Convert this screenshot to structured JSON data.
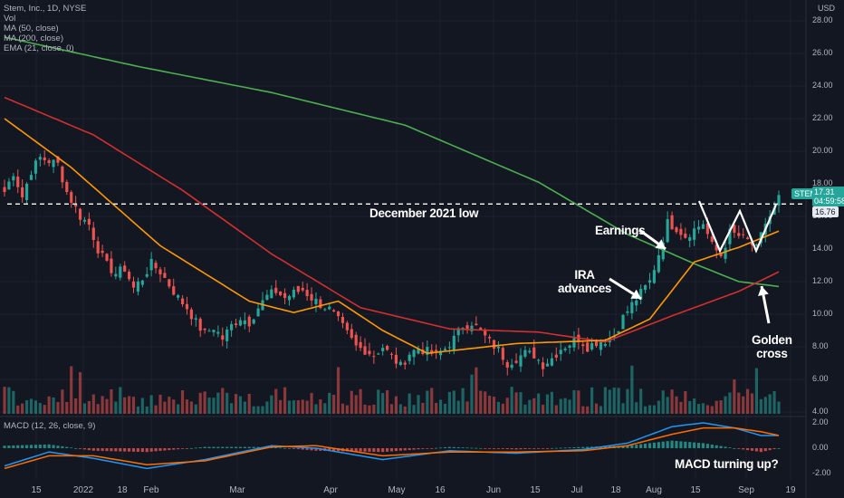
{
  "legend": {
    "symbol": "Stem, Inc., 1D, NYSE",
    "vol": "Vol",
    "ma50": "MA (50, close)",
    "ma200": "MA (200, close)",
    "ema": "EMA (21, close, 0)"
  },
  "macd_legend": "MACD (12, 26, close, 9)",
  "currency": "USD",
  "price_axis": [
    "28.00",
    "26.00",
    "24.00",
    "22.00",
    "20.00",
    "18.00",
    "16.00",
    "14.00",
    "12.00",
    "10.00",
    "8.00",
    "6.00",
    "4.00"
  ],
  "macd_axis": [
    "2.00",
    "0.00",
    "-2.00"
  ],
  "x_axis": [
    "15",
    "2022",
    "18",
    "Feb",
    "Mar",
    "Apr",
    "May",
    "16",
    "Jun",
    "15",
    "Jul",
    "18",
    "Aug",
    "15",
    "Sep",
    "19"
  ],
  "price_tags": {
    "symbol": "STEM",
    "last": "17.31",
    "countdown": "04:59:58",
    "ref": "16.76"
  },
  "annotations": {
    "december_low": "December 2021 low",
    "earnings": "Earnings",
    "ira": [
      "IRA",
      "advances"
    ],
    "golden": [
      "Golden",
      "cross"
    ],
    "macd": "MACD turning up?"
  },
  "colors": {
    "background": "#131722",
    "up": "#26a69a",
    "down": "#ef5350",
    "ma50": "#d32f2f",
    "ma200": "#4caf50",
    "ema": "#ff9800",
    "macd": "#2196f3",
    "signal": "#ff6d00",
    "grid": "#1e222d"
  },
  "chart_data": [
    {
      "type": "candlestick",
      "title": "Stem, Inc., 1D, NYSE",
      "ylabel": "USD",
      "ylim": [
        4,
        28
      ],
      "x": [
        "15",
        "2022",
        "18",
        "Feb",
        "Mar",
        "Apr",
        "May",
        "16",
        "Jun",
        "15",
        "Jul",
        "18",
        "Aug",
        "15",
        "Sep",
        "19"
      ],
      "series": [
        {
          "name": "Close (approx.)",
          "points": [
            [
              0,
              17.5
            ],
            [
              2,
              18.7
            ],
            [
              4,
              17.2
            ],
            [
              6,
              18.8
            ],
            [
              8,
              19.6
            ],
            [
              10,
              19.4
            ],
            [
              12,
              19.2
            ],
            [
              14,
              17.5
            ],
            [
              17,
              16.0
            ],
            [
              19,
              15.5
            ],
            [
              21,
              14.0
            ],
            [
              23,
              13.0
            ],
            [
              25,
              12.5
            ],
            [
              27,
              12.8
            ],
            [
              29,
              11.6
            ],
            [
              31,
              12.2
            ],
            [
              33,
              13.1
            ],
            [
              35,
              12.6
            ],
            [
              37,
              11.8
            ],
            [
              39,
              11.0
            ],
            [
              41,
              10.4
            ],
            [
              43,
              9.5
            ],
            [
              45,
              8.8
            ],
            [
              47,
              9.2
            ],
            [
              49,
              8.5
            ],
            [
              51,
              9.3
            ],
            [
              53,
              9.8
            ],
            [
              55,
              9.5
            ],
            [
              57,
              10.4
            ],
            [
              59,
              11.1
            ],
            [
              61,
              11.4
            ],
            [
              63,
              11.0
            ],
            [
              65,
              11.3
            ],
            [
              67,
              11.5
            ],
            [
              69,
              11.0
            ],
            [
              71,
              10.6
            ],
            [
              73,
              10.3
            ],
            [
              75,
              9.6
            ],
            [
              77,
              8.8
            ],
            [
              79,
              8.0
            ],
            [
              81,
              7.8
            ],
            [
              83,
              7.5
            ],
            [
              85,
              8.0
            ],
            [
              87,
              7.4
            ],
            [
              89,
              6.8
            ],
            [
              91,
              7.6
            ],
            [
              93,
              7.9
            ],
            [
              95,
              7.7
            ],
            [
              97,
              7.5
            ],
            [
              99,
              7.9
            ],
            [
              101,
              8.5
            ],
            [
              103,
              9.3
            ],
            [
              105,
              9.5
            ],
            [
              107,
              8.9
            ],
            [
              109,
              8.3
            ],
            [
              111,
              7.8
            ],
            [
              113,
              7.0
            ],
            [
              115,
              7.3
            ],
            [
              117,
              7.6
            ],
            [
              119,
              7.5
            ],
            [
              121,
              6.9
            ],
            [
              123,
              7.3
            ],
            [
              125,
              7.9
            ],
            [
              127,
              8.2
            ],
            [
              129,
              8.5
            ],
            [
              131,
              8.0
            ],
            [
              133,
              8.3
            ],
            [
              135,
              8.4
            ],
            [
              137,
              8.7
            ],
            [
              139,
              9.8
            ],
            [
              141,
              10.6
            ],
            [
              143,
              11.3
            ],
            [
              145,
              12.0
            ],
            [
              147,
              13.7
            ],
            [
              149,
              15.6
            ],
            [
              151,
              15.3
            ],
            [
              153,
              14.8
            ],
            [
              155,
              15.2
            ],
            [
              157,
              15.6
            ],
            [
              159,
              14.2
            ],
            [
              161,
              13.6
            ],
            [
              163,
              15.0
            ],
            [
              165,
              14.8
            ],
            [
              167,
              14.5
            ],
            [
              169,
              14.0
            ],
            [
              171,
              15.6
            ],
            [
              173,
              16.4
            ],
            [
              174,
              17.31
            ]
          ]
        },
        {
          "name": "MA (50, close)",
          "points": [
            [
              0,
              23.3
            ],
            [
              20,
              21.0
            ],
            [
              40,
              17.6
            ],
            [
              60,
              13.7
            ],
            [
              80,
              10.4
            ],
            [
              100,
              9.1
            ],
            [
              120,
              8.9
            ],
            [
              135,
              8.3
            ],
            [
              150,
              9.9
            ],
            [
              165,
              11.4
            ],
            [
              174,
              12.6
            ]
          ]
        },
        {
          "name": "MA (200, close)",
          "points": [
            [
              0,
              27.0
            ],
            [
              30,
              25.2
            ],
            [
              60,
              23.6
            ],
            [
              90,
              21.6
            ],
            [
              120,
              18.1
            ],
            [
              140,
              14.9
            ],
            [
              155,
              13.1
            ],
            [
              165,
              12.0
            ],
            [
              174,
              11.7
            ]
          ]
        },
        {
          "name": "EMA (21, close, 0)",
          "points": [
            [
              0,
              22.0
            ],
            [
              15,
              19.0
            ],
            [
              35,
              14.2
            ],
            [
              55,
              10.8
            ],
            [
              65,
              10.1
            ],
            [
              75,
              10.8
            ],
            [
              85,
              9.0
            ],
            [
              95,
              7.6
            ],
            [
              115,
              8.2
            ],
            [
              135,
              8.4
            ],
            [
              145,
              9.7
            ],
            [
              155,
              13.2
            ],
            [
              165,
              14.1
            ],
            [
              174,
              15.1
            ]
          ]
        }
      ],
      "annotations": [
        "December 2021 low",
        "Earnings",
        "IRA advances",
        "Golden cross"
      ],
      "reference_line": 16.76,
      "grid": true
    },
    {
      "type": "bar",
      "title": "Vol",
      "series": [
        {
          "name": "Vol",
          "values": "relative volume bars, green on up days, red on down days"
        }
      ]
    },
    {
      "type": "line",
      "title": "MACD (12, 26, close, 9)",
      "ylim": [
        -2.5,
        2.5
      ],
      "series": [
        {
          "name": "MACD",
          "points": [
            [
              0,
              -1.4
            ],
            [
              10,
              -0.3
            ],
            [
              20,
              -0.8
            ],
            [
              32,
              -1.6
            ],
            [
              45,
              -0.9
            ],
            [
              60,
              0.2
            ],
            [
              70,
              0.0
            ],
            [
              85,
              -0.9
            ],
            [
              100,
              -0.2
            ],
            [
              115,
              -0.4
            ],
            [
              130,
              -0.1
            ],
            [
              140,
              0.4
            ],
            [
              150,
              1.7
            ],
            [
              157,
              2.0
            ],
            [
              164,
              1.6
            ],
            [
              170,
              1.0
            ],
            [
              174,
              1.0
            ]
          ]
        },
        {
          "name": "Signal",
          "points": [
            [
              0,
              -1.6
            ],
            [
              10,
              -0.6
            ],
            [
              20,
              -0.6
            ],
            [
              32,
              -1.3
            ],
            [
              45,
              -1.0
            ],
            [
              60,
              0.1
            ],
            [
              70,
              0.2
            ],
            [
              85,
              -0.6
            ],
            [
              100,
              -0.3
            ],
            [
              115,
              -0.3
            ],
            [
              130,
              -0.2
            ],
            [
              140,
              0.2
            ],
            [
              150,
              1.1
            ],
            [
              157,
              1.6
            ],
            [
              164,
              1.6
            ],
            [
              170,
              1.3
            ],
            [
              174,
              1.0
            ]
          ]
        }
      ],
      "annotations": [
        "MACD turning up?"
      ]
    }
  ]
}
